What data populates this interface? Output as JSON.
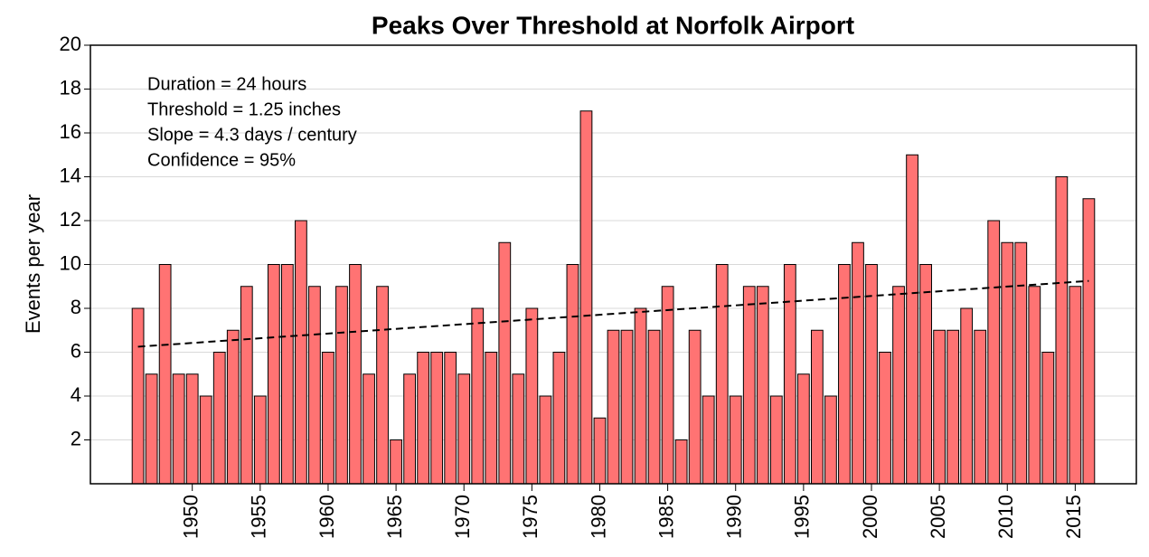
{
  "chart_data": {
    "type": "bar",
    "title": "Peaks Over Threshold at Norfolk Airport",
    "ylabel": "Events per year",
    "annotations": [
      "Duration = 24 hours",
      "Threshold = 1.25 inches",
      "Slope = 4.3 days / century",
      "Confidence = 95%"
    ],
    "x": [
      1946,
      1947,
      1948,
      1949,
      1950,
      1951,
      1952,
      1953,
      1954,
      1955,
      1956,
      1957,
      1958,
      1959,
      1960,
      1961,
      1962,
      1963,
      1964,
      1965,
      1966,
      1967,
      1968,
      1969,
      1970,
      1971,
      1972,
      1973,
      1974,
      1975,
      1976,
      1977,
      1978,
      1979,
      1980,
      1981,
      1982,
      1983,
      1984,
      1985,
      1986,
      1987,
      1988,
      1989,
      1990,
      1991,
      1992,
      1993,
      1994,
      1995,
      1996,
      1997,
      1998,
      1999,
      2000,
      2001,
      2002,
      2003,
      2004,
      2005,
      2006,
      2007,
      2008,
      2009,
      2010,
      2011,
      2012,
      2013,
      2014,
      2015,
      2016
    ],
    "values": [
      8,
      5,
      10,
      5,
      5,
      4,
      6,
      7,
      9,
      4,
      10,
      10,
      12,
      9,
      6,
      9,
      10,
      5,
      9,
      2,
      5,
      6,
      6,
      6,
      5,
      8,
      6,
      11,
      5,
      8,
      4,
      6,
      10,
      17,
      3,
      7,
      7,
      8,
      7,
      9,
      2,
      7,
      4,
      10,
      4,
      9,
      9,
      4,
      10,
      5,
      7,
      4,
      10,
      11,
      10,
      6,
      9,
      15,
      10,
      7,
      7,
      8,
      7,
      12,
      11,
      11,
      9,
      6,
      14,
      9,
      13
    ],
    "color": "#ff7373",
    "trend": {
      "x": [
        1946,
        2016
      ],
      "values": [
        6.25,
        9.25
      ],
      "color": "#000000"
    },
    "xlim": [
      1942.5,
      2019.5
    ],
    "xticks": [
      1950,
      1955,
      1960,
      1965,
      1970,
      1975,
      1980,
      1985,
      1990,
      1995,
      2000,
      2005,
      2010,
      2015
    ],
    "ylim": [
      0,
      20
    ],
    "yticks": [
      2,
      4,
      6,
      8,
      10,
      12,
      14,
      16,
      18,
      20
    ],
    "grid": true
  }
}
